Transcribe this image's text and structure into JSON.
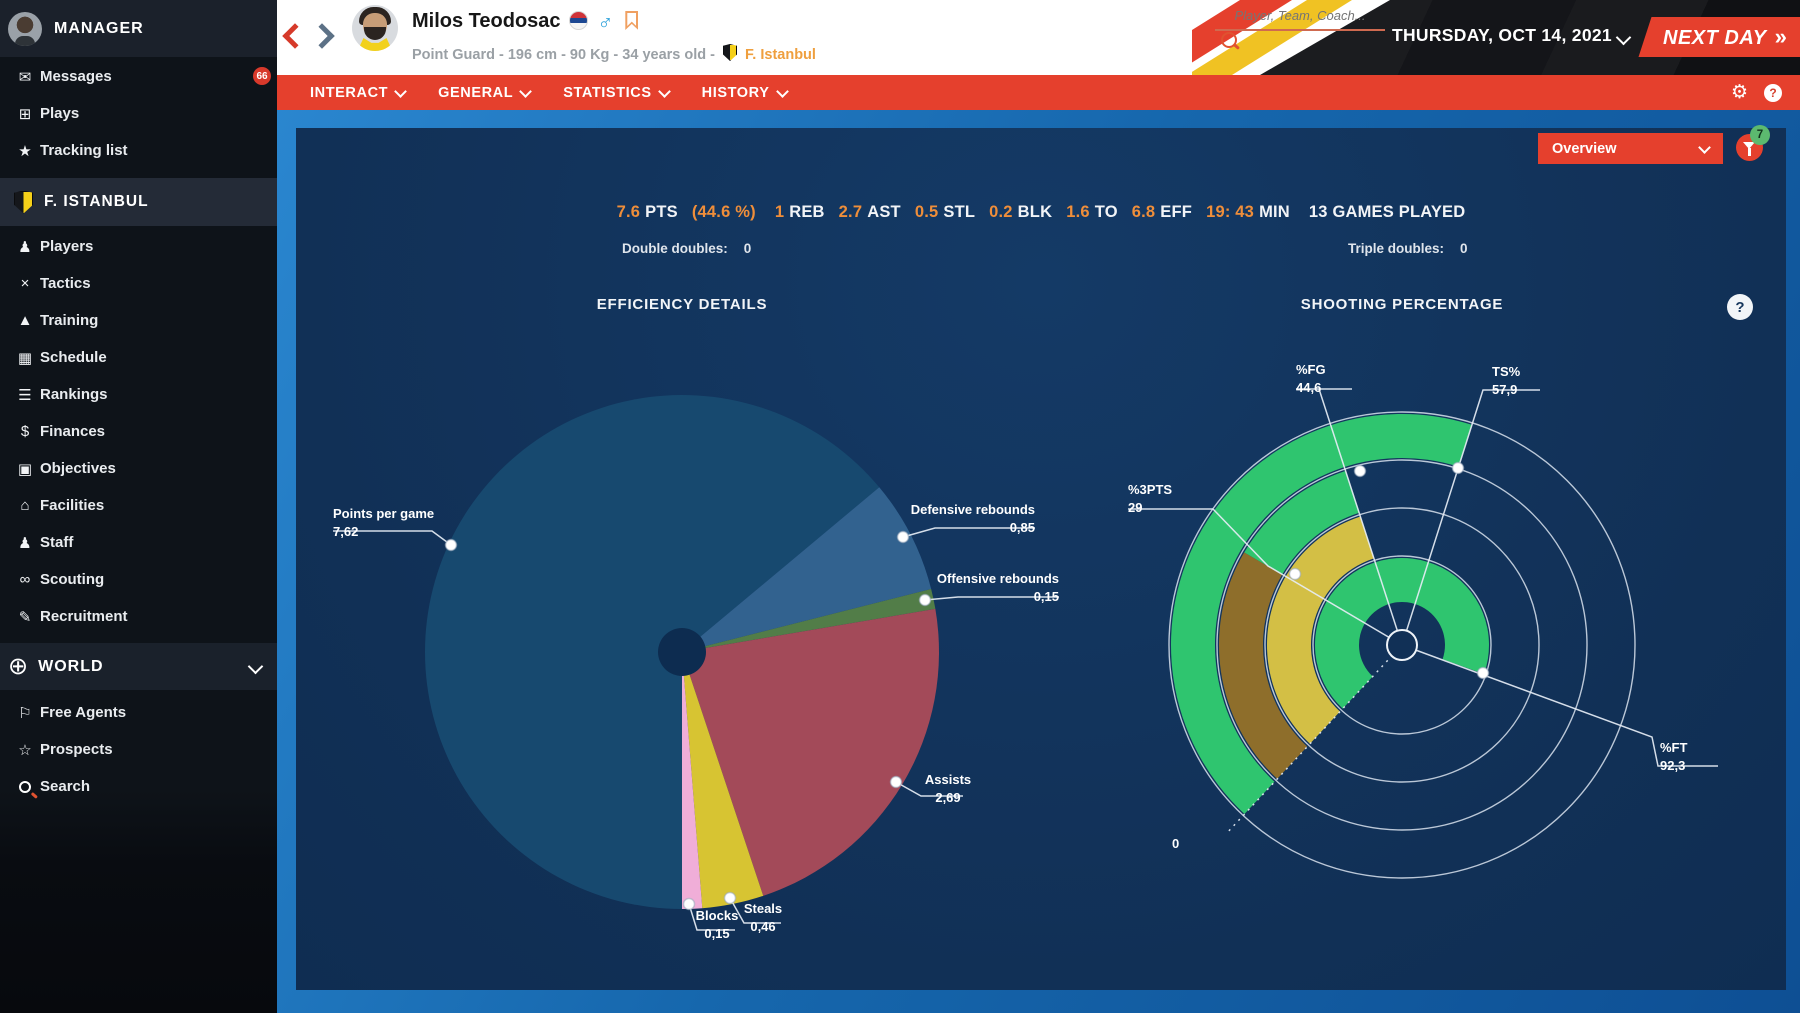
{
  "sidebar": {
    "manager": {
      "label": "MANAGER"
    },
    "items_top": [
      {
        "label": "Messages",
        "badge": "66"
      },
      {
        "label": "Plays"
      },
      {
        "label": "Tracking list"
      }
    ],
    "team": {
      "label": "F. ISTANBUL"
    },
    "items_team": [
      {
        "label": "Players"
      },
      {
        "label": "Tactics"
      },
      {
        "label": "Training"
      },
      {
        "label": "Schedule"
      },
      {
        "label": "Rankings"
      },
      {
        "label": "Finances"
      },
      {
        "label": "Objectives"
      },
      {
        "label": "Facilities"
      },
      {
        "label": "Staff"
      },
      {
        "label": "Scouting"
      },
      {
        "label": "Recruitment"
      }
    ],
    "world": {
      "label": "WORLD"
    },
    "items_world": [
      {
        "label": "Free Agents"
      },
      {
        "label": "Prospects"
      },
      {
        "label": "Search"
      }
    ]
  },
  "header": {
    "player_name": "Milos Teodosac",
    "player_info": "Point Guard - 196 cm - 90 Kg - 34 years old -",
    "player_team": "F. Istanbul",
    "search_placeholder": "Player, Team, Coach...",
    "date": "THURSDAY, OCT 14, 2021",
    "next_day_label": "NEXT DAY",
    "next_day_arrows": "»"
  },
  "menu": {
    "items": [
      {
        "label": "INTERACT"
      },
      {
        "label": "GENERAL"
      },
      {
        "label": "STATISTICS"
      },
      {
        "label": "HISTORY"
      }
    ]
  },
  "panel": {
    "view_selector": "Overview",
    "filter_badge": "7",
    "stats": [
      {
        "value": "7.6",
        "label": "PTS"
      },
      {
        "value": "(44.6 %)",
        "label": ""
      },
      {
        "value": "1",
        "label": "REB"
      },
      {
        "value": "2.7",
        "label": "AST"
      },
      {
        "value": "0.5",
        "label": "STL"
      },
      {
        "value": "0.2",
        "label": "BLK"
      },
      {
        "value": "1.6",
        "label": "TO"
      },
      {
        "value": "6.8",
        "label": "EFF"
      },
      {
        "value": "19: 43",
        "label": "MIN"
      },
      {
        "value": "",
        "label": "13 GAMES PLAYED"
      }
    ],
    "double_doubles_label": "Double doubles:",
    "double_doubles_value": "0",
    "triple_doubles_label": "Triple doubles:",
    "triple_doubles_value": "0",
    "left_title": "EFFICIENCY DETAILS",
    "right_title": "SHOOTING PERCENTAGE",
    "help_glyph": "?"
  },
  "icons": {
    "messages": "✉",
    "plays": "⊞",
    "tracking": "★",
    "players": "♟",
    "tactics": "×",
    "training": "▲",
    "schedule": "▦",
    "rankings": "☰",
    "finances": "$",
    "objectives": "▣",
    "facilities": "⌂",
    "staff": "♟",
    "scouting": "∞",
    "recruitment": "✎",
    "world": "⊕",
    "free_agents": "⚐",
    "prospects": "☆",
    "gear": "⚙",
    "male": "♂"
  },
  "colors": {
    "accent_red": "#e5402d",
    "value_orange": "#ef8e3a",
    "panel_navy": "#113056",
    "frame_blue": "#1667ad",
    "green": "#2fc56f",
    "yellow": "#d3bf45"
  },
  "chart_data": [
    {
      "type": "pie",
      "title": "EFFICIENCY DETAILS",
      "start_angle_deg": 180,
      "hole_color": "#0d2c50",
      "slices": [
        {
          "label": "Points per game",
          "value": 7.62,
          "display": "7,62",
          "color": "#17496f"
        },
        {
          "label": "Defensive rebounds",
          "value": 0.85,
          "display": "0,85",
          "color": "#32628f"
        },
        {
          "label": "Offensive rebounds",
          "value": 0.15,
          "display": "0,15",
          "color": "#527d48"
        },
        {
          "label": "Assists",
          "value": 2.69,
          "display": "2,69",
          "color": "#a34a59"
        },
        {
          "label": "Steals",
          "value": 0.46,
          "display": "0,46",
          "color": "#d7c432"
        },
        {
          "label": "Blocks",
          "value": 0.15,
          "display": "0,15",
          "color": "#f0aed8"
        }
      ]
    },
    {
      "type": "bar",
      "variant": "radial-gauge",
      "title": "SHOOTING PERCENTAGE",
      "zero_label": "0",
      "start_angle_deg": 223,
      "scale_deg_per_unit": 2.67,
      "series": [
        {
          "label": "TS%",
          "value": 57.9,
          "display": "57,9",
          "color": "#2fc56f"
        },
        {
          "label": "%FG",
          "value": 44.6,
          "display": "44,6",
          "color": "#2fc56f"
        },
        {
          "label": "%3PTS",
          "value": 29,
          "display": "29",
          "color": "#d3bf45",
          "overlap_color": "#8e6e2b"
        },
        {
          "label": "%FT",
          "value": 92.3,
          "display": "92,3",
          "color": "#2fc56f"
        }
      ]
    }
  ]
}
